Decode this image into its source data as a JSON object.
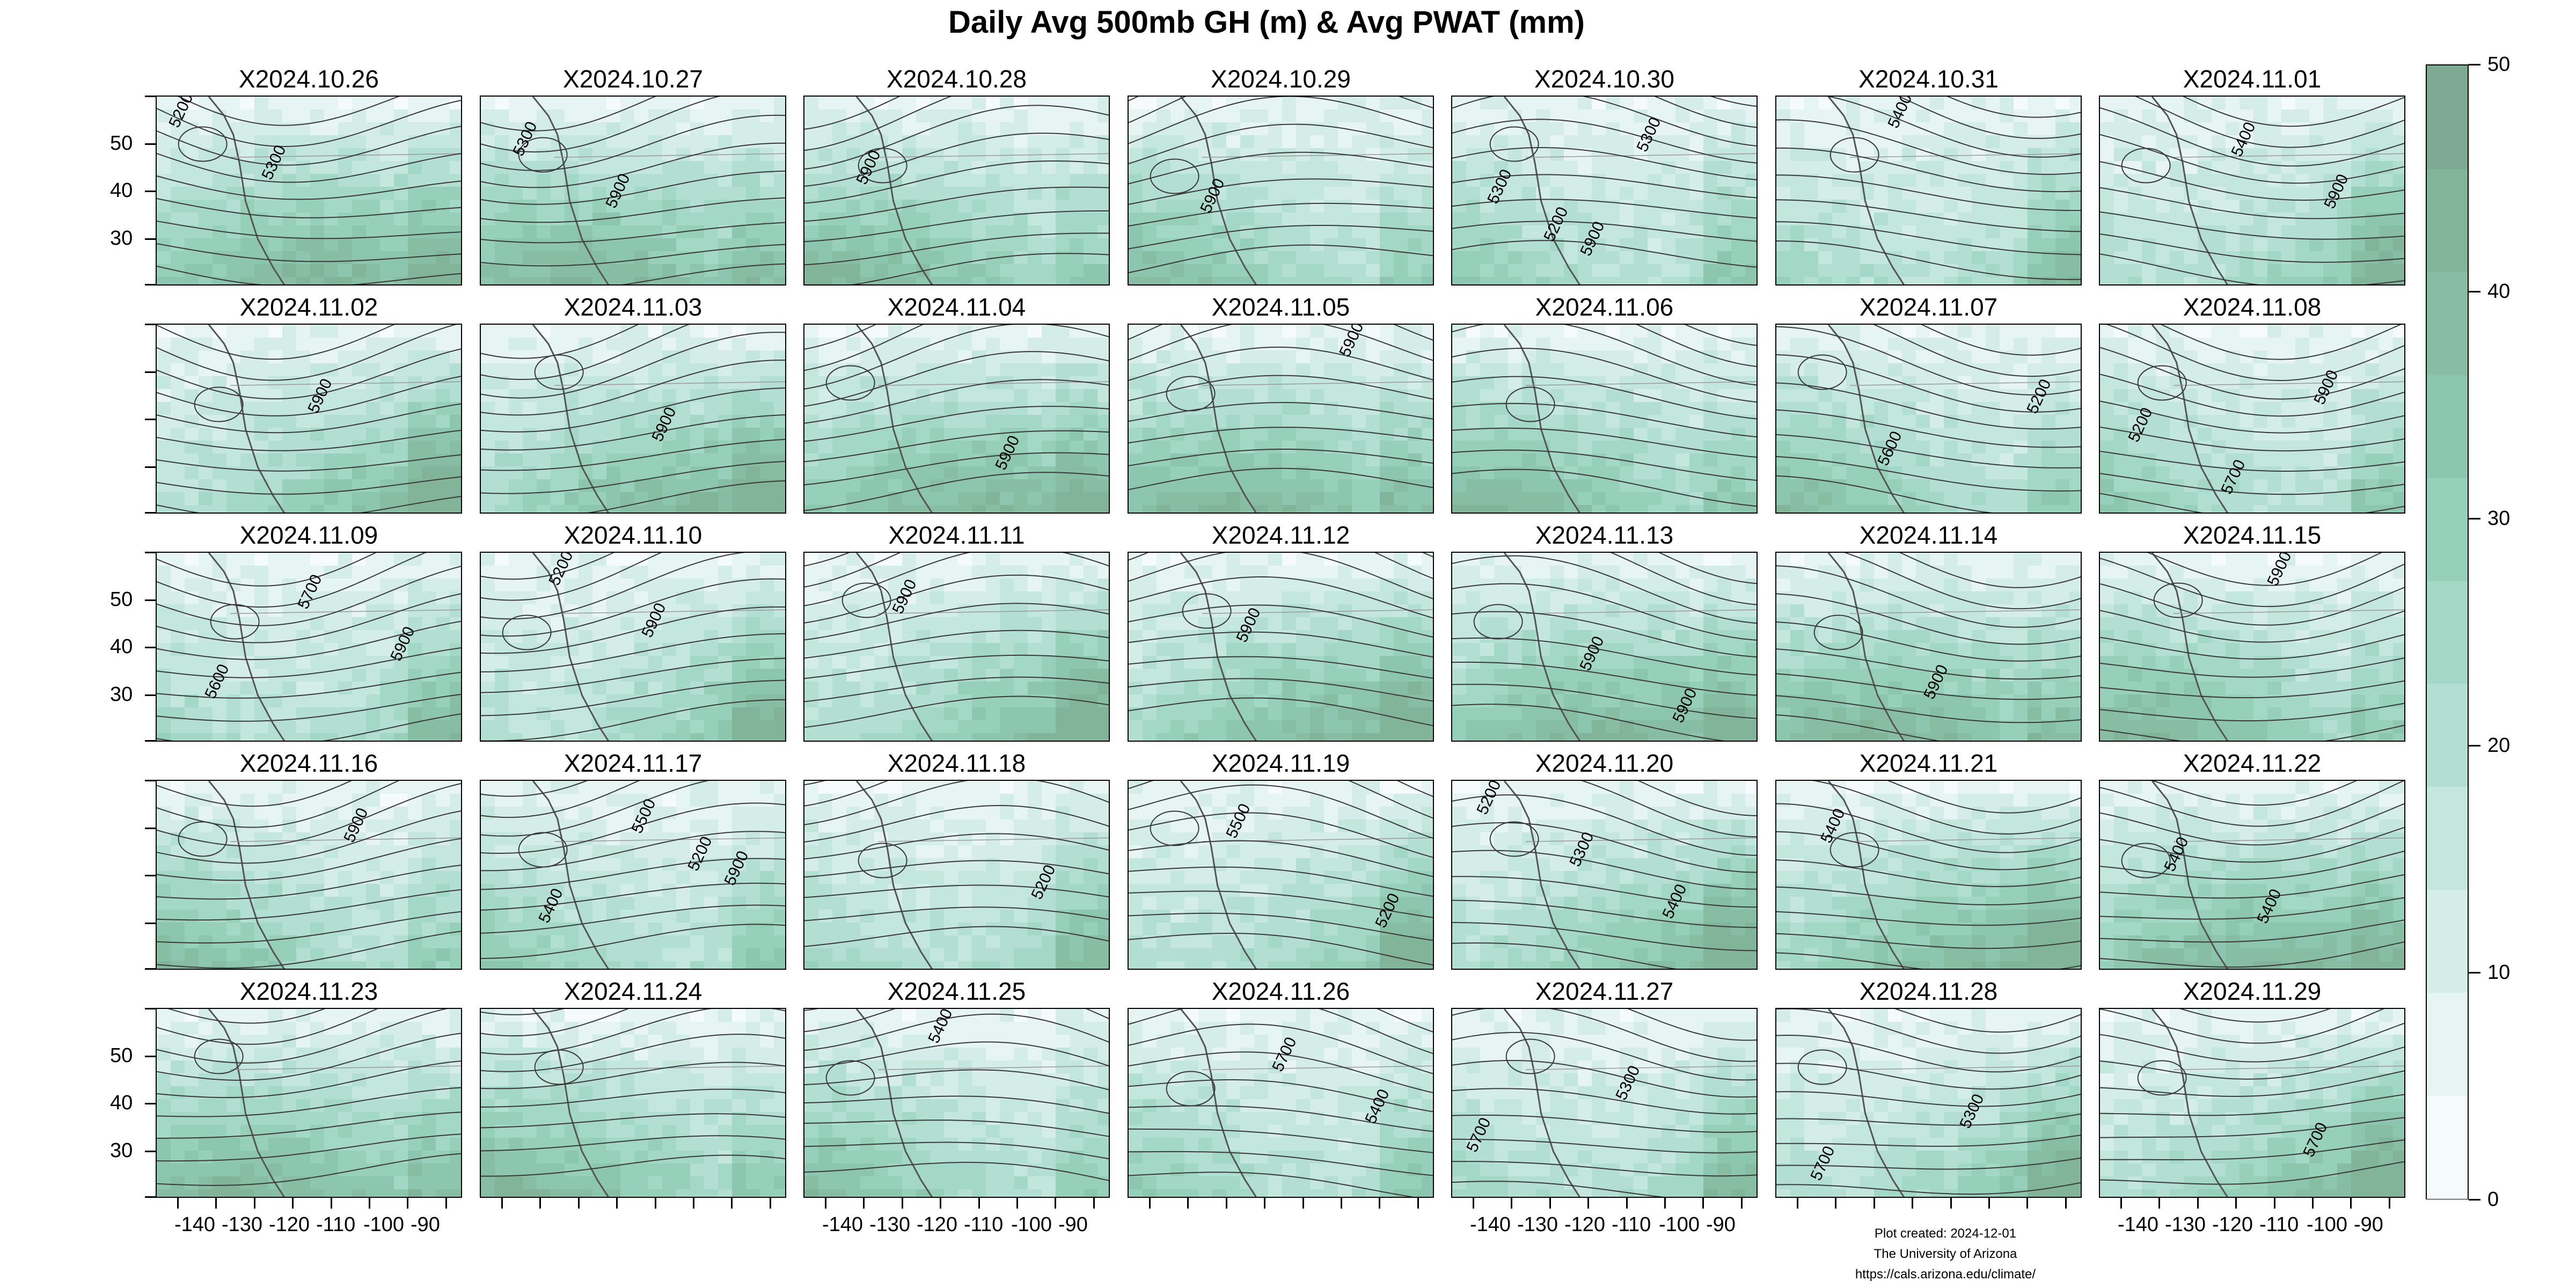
{
  "title": "Daily Avg 500mb GH (m) & Avg PWAT (mm)",
  "panels": [
    {
      "date": "X2024.10.26",
      "labels": [
        "5200",
        "5300"
      ]
    },
    {
      "date": "X2024.10.27",
      "labels": [
        "5300",
        "5900"
      ]
    },
    {
      "date": "X2024.10.28",
      "labels": [
        "5900"
      ]
    },
    {
      "date": "X2024.10.29",
      "labels": [
        "5900"
      ]
    },
    {
      "date": "X2024.10.30",
      "labels": [
        "5200",
        "5300",
        "5300",
        "5900"
      ]
    },
    {
      "date": "X2024.10.31",
      "labels": [
        "5400"
      ]
    },
    {
      "date": "X2024.11.01",
      "labels": [
        "5400",
        "5900"
      ]
    },
    {
      "date": "X2024.11.02",
      "labels": [
        "5900"
      ]
    },
    {
      "date": "X2024.11.03",
      "labels": [
        "5900"
      ]
    },
    {
      "date": "X2024.11.04",
      "labels": [
        "5900"
      ]
    },
    {
      "date": "X2024.11.05",
      "labels": [
        "5900"
      ]
    },
    {
      "date": "X2024.11.06",
      "labels": []
    },
    {
      "date": "X2024.11.07",
      "labels": [
        "5200",
        "5600"
      ]
    },
    {
      "date": "X2024.11.08",
      "labels": [
        "5200",
        "5700",
        "5900"
      ]
    },
    {
      "date": "X2024.11.09",
      "labels": [
        "5600",
        "5700",
        "5900"
      ]
    },
    {
      "date": "X2024.11.10",
      "labels": [
        "5200",
        "5900"
      ]
    },
    {
      "date": "X2024.11.11",
      "labels": [
        "5900"
      ]
    },
    {
      "date": "X2024.11.12",
      "labels": [
        "5900"
      ]
    },
    {
      "date": "X2024.11.13",
      "labels": [
        "5900",
        "5900"
      ]
    },
    {
      "date": "X2024.11.14",
      "labels": [
        "5900"
      ]
    },
    {
      "date": "X2024.11.15",
      "labels": [
        "5900"
      ]
    },
    {
      "date": "X2024.11.16",
      "labels": [
        "5900"
      ]
    },
    {
      "date": "X2024.11.17",
      "labels": [
        "5200",
        "5400",
        "5500",
        "5900"
      ]
    },
    {
      "date": "X2024.11.18",
      "labels": [
        "5200"
      ]
    },
    {
      "date": "X2024.11.19",
      "labels": [
        "5200",
        "5500"
      ]
    },
    {
      "date": "X2024.11.20",
      "labels": [
        "5200",
        "5300",
        "5400"
      ]
    },
    {
      "date": "X2024.11.21",
      "labels": [
        "5400"
      ]
    },
    {
      "date": "X2024.11.22",
      "labels": [
        "5400",
        "5400"
      ]
    },
    {
      "date": "X2024.11.23",
      "labels": []
    },
    {
      "date": "X2024.11.24",
      "labels": []
    },
    {
      "date": "X2024.11.25",
      "labels": [
        "5400"
      ]
    },
    {
      "date": "X2024.11.26",
      "labels": [
        "5700",
        "5400"
      ]
    },
    {
      "date": "X2024.11.27",
      "labels": [
        "5300",
        "5700"
      ]
    },
    {
      "date": "X2024.11.28",
      "labels": [
        "5300",
        "5700"
      ]
    },
    {
      "date": "X2024.11.29",
      "labels": [
        "5700"
      ]
    }
  ],
  "y_ticks": [
    "50",
    "40",
    "30"
  ],
  "x_ticks": [
    "-140",
    "-130",
    "-120",
    "-110",
    "-100",
    "-90"
  ],
  "colorbar": {
    "ticks": [
      "0",
      "10",
      "20",
      "30",
      "40",
      "50"
    ],
    "colors": [
      "#f5fbfb",
      "#e6f5f3",
      "#d4ede8",
      "#c3e6dd",
      "#b2dfd2",
      "#a3d7c6",
      "#96cfba",
      "#8cc6ae",
      "#86bda3",
      "#82b49a",
      "#7ea993"
    ]
  },
  "credit": {
    "line1": "Plot created: 2024-12-01",
    "line2": "The University of Arizona",
    "line3": "https://cals.arizona.edu/climate/"
  }
}
